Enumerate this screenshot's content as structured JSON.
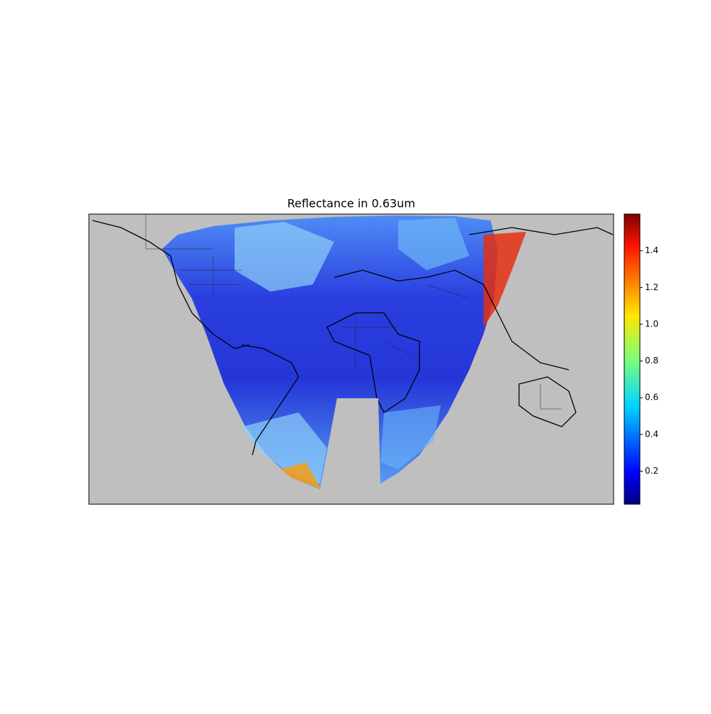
{
  "map": {
    "title": "Reflectance in 0.63um",
    "colorbar": {
      "lim": [
        0.02,
        1.6
      ],
      "ticks": [
        0.2,
        0.4,
        0.6,
        0.8,
        {
          "value": 1,
          "label": "1.0"
        },
        1.2,
        1.4
      ]
    }
  }
}
